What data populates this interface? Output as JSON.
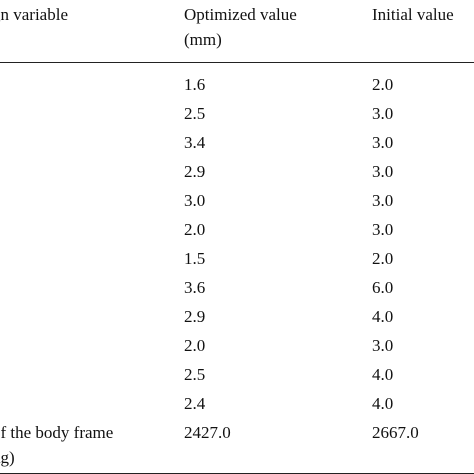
{
  "table": {
    "header": [
      [
        "gn variable"
      ],
      [
        "Optimized value",
        "(mm)"
      ],
      [
        "Initial value"
      ]
    ],
    "rows": [
      [
        [],
        [
          "1.6"
        ],
        [
          "2.0"
        ]
      ],
      [
        [],
        [
          "2.5"
        ],
        [
          "3.0"
        ]
      ],
      [
        [],
        [
          "3.4"
        ],
        [
          "3.0"
        ]
      ],
      [
        [],
        [
          "2.9"
        ],
        [
          "3.0"
        ]
      ],
      [
        [],
        [
          "3.0"
        ],
        [
          "3.0"
        ]
      ],
      [
        [],
        [
          "2.0"
        ],
        [
          "3.0"
        ]
      ],
      [
        [],
        [
          "1.5"
        ],
        [
          "2.0"
        ]
      ],
      [
        [],
        [
          "3.6"
        ],
        [
          "6.0"
        ]
      ],
      [
        [],
        [
          "2.9"
        ],
        [
          "4.0"
        ]
      ],
      [
        [],
        [
          "2.0"
        ],
        [
          "3.0"
        ]
      ],
      [
        [],
        [
          "2.5"
        ],
        [
          "4.0"
        ]
      ],
      [
        [],
        [
          "2.4"
        ],
        [
          "4.0"
        ]
      ],
      [
        [
          "of the body frame",
          "kg)"
        ],
        [
          "2427.0"
        ],
        [
          "2667.0"
        ]
      ]
    ]
  }
}
